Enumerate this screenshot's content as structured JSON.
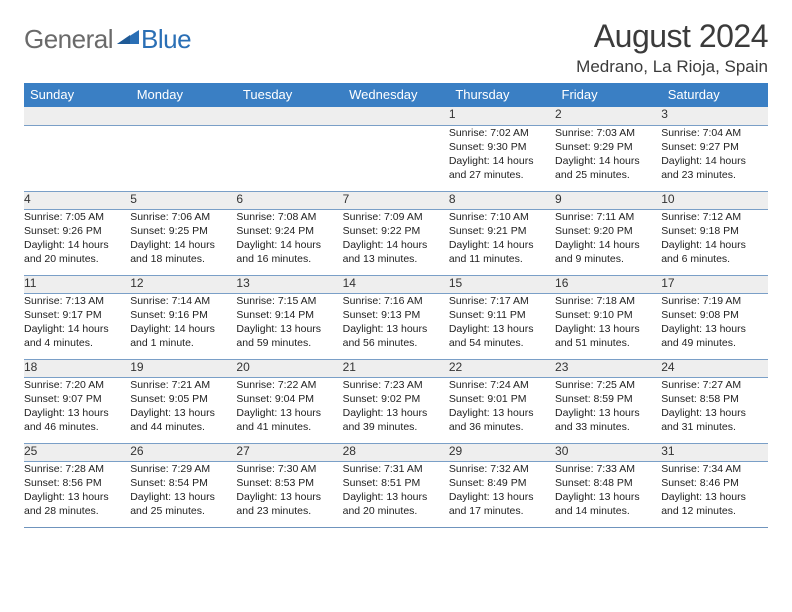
{
  "logo": {
    "part1": "General",
    "part2": "Blue"
  },
  "title": "August 2024",
  "location": "Medrano, La Rioja, Spain",
  "colors": {
    "header_bg": "#3a7fc4",
    "header_text": "#ffffff",
    "daynum_bg": "#eeeeee",
    "border": "#6f94bd",
    "logo_gray": "#6a6a6a",
    "logo_blue": "#2a6fb5"
  },
  "typography": {
    "title_fontsize": 32,
    "location_fontsize": 17,
    "header_fontsize": 13,
    "daynum_fontsize": 12,
    "cell_fontsize": 10.5
  },
  "weekdays": [
    "Sunday",
    "Monday",
    "Tuesday",
    "Wednesday",
    "Thursday",
    "Friday",
    "Saturday"
  ],
  "weeks": [
    [
      {
        "n": "",
        "lines": []
      },
      {
        "n": "",
        "lines": []
      },
      {
        "n": "",
        "lines": []
      },
      {
        "n": "",
        "lines": []
      },
      {
        "n": "1",
        "lines": [
          "Sunrise: 7:02 AM",
          "Sunset: 9:30 PM",
          "Daylight: 14 hours",
          "and 27 minutes."
        ]
      },
      {
        "n": "2",
        "lines": [
          "Sunrise: 7:03 AM",
          "Sunset: 9:29 PM",
          "Daylight: 14 hours",
          "and 25 minutes."
        ]
      },
      {
        "n": "3",
        "lines": [
          "Sunrise: 7:04 AM",
          "Sunset: 9:27 PM",
          "Daylight: 14 hours",
          "and 23 minutes."
        ]
      }
    ],
    [
      {
        "n": "4",
        "lines": [
          "Sunrise: 7:05 AM",
          "Sunset: 9:26 PM",
          "Daylight: 14 hours",
          "and 20 minutes."
        ]
      },
      {
        "n": "5",
        "lines": [
          "Sunrise: 7:06 AM",
          "Sunset: 9:25 PM",
          "Daylight: 14 hours",
          "and 18 minutes."
        ]
      },
      {
        "n": "6",
        "lines": [
          "Sunrise: 7:08 AM",
          "Sunset: 9:24 PM",
          "Daylight: 14 hours",
          "and 16 minutes."
        ]
      },
      {
        "n": "7",
        "lines": [
          "Sunrise: 7:09 AM",
          "Sunset: 9:22 PM",
          "Daylight: 14 hours",
          "and 13 minutes."
        ]
      },
      {
        "n": "8",
        "lines": [
          "Sunrise: 7:10 AM",
          "Sunset: 9:21 PM",
          "Daylight: 14 hours",
          "and 11 minutes."
        ]
      },
      {
        "n": "9",
        "lines": [
          "Sunrise: 7:11 AM",
          "Sunset: 9:20 PM",
          "Daylight: 14 hours",
          "and 9 minutes."
        ]
      },
      {
        "n": "10",
        "lines": [
          "Sunrise: 7:12 AM",
          "Sunset: 9:18 PM",
          "Daylight: 14 hours",
          "and 6 minutes."
        ]
      }
    ],
    [
      {
        "n": "11",
        "lines": [
          "Sunrise: 7:13 AM",
          "Sunset: 9:17 PM",
          "Daylight: 14 hours",
          "and 4 minutes."
        ]
      },
      {
        "n": "12",
        "lines": [
          "Sunrise: 7:14 AM",
          "Sunset: 9:16 PM",
          "Daylight: 14 hours",
          "and 1 minute."
        ]
      },
      {
        "n": "13",
        "lines": [
          "Sunrise: 7:15 AM",
          "Sunset: 9:14 PM",
          "Daylight: 13 hours",
          "and 59 minutes."
        ]
      },
      {
        "n": "14",
        "lines": [
          "Sunrise: 7:16 AM",
          "Sunset: 9:13 PM",
          "Daylight: 13 hours",
          "and 56 minutes."
        ]
      },
      {
        "n": "15",
        "lines": [
          "Sunrise: 7:17 AM",
          "Sunset: 9:11 PM",
          "Daylight: 13 hours",
          "and 54 minutes."
        ]
      },
      {
        "n": "16",
        "lines": [
          "Sunrise: 7:18 AM",
          "Sunset: 9:10 PM",
          "Daylight: 13 hours",
          "and 51 minutes."
        ]
      },
      {
        "n": "17",
        "lines": [
          "Sunrise: 7:19 AM",
          "Sunset: 9:08 PM",
          "Daylight: 13 hours",
          "and 49 minutes."
        ]
      }
    ],
    [
      {
        "n": "18",
        "lines": [
          "Sunrise: 7:20 AM",
          "Sunset: 9:07 PM",
          "Daylight: 13 hours",
          "and 46 minutes."
        ]
      },
      {
        "n": "19",
        "lines": [
          "Sunrise: 7:21 AM",
          "Sunset: 9:05 PM",
          "Daylight: 13 hours",
          "and 44 minutes."
        ]
      },
      {
        "n": "20",
        "lines": [
          "Sunrise: 7:22 AM",
          "Sunset: 9:04 PM",
          "Daylight: 13 hours",
          "and 41 minutes."
        ]
      },
      {
        "n": "21",
        "lines": [
          "Sunrise: 7:23 AM",
          "Sunset: 9:02 PM",
          "Daylight: 13 hours",
          "and 39 minutes."
        ]
      },
      {
        "n": "22",
        "lines": [
          "Sunrise: 7:24 AM",
          "Sunset: 9:01 PM",
          "Daylight: 13 hours",
          "and 36 minutes."
        ]
      },
      {
        "n": "23",
        "lines": [
          "Sunrise: 7:25 AM",
          "Sunset: 8:59 PM",
          "Daylight: 13 hours",
          "and 33 minutes."
        ]
      },
      {
        "n": "24",
        "lines": [
          "Sunrise: 7:27 AM",
          "Sunset: 8:58 PM",
          "Daylight: 13 hours",
          "and 31 minutes."
        ]
      }
    ],
    [
      {
        "n": "25",
        "lines": [
          "Sunrise: 7:28 AM",
          "Sunset: 8:56 PM",
          "Daylight: 13 hours",
          "and 28 minutes."
        ]
      },
      {
        "n": "26",
        "lines": [
          "Sunrise: 7:29 AM",
          "Sunset: 8:54 PM",
          "Daylight: 13 hours",
          "and 25 minutes."
        ]
      },
      {
        "n": "27",
        "lines": [
          "Sunrise: 7:30 AM",
          "Sunset: 8:53 PM",
          "Daylight: 13 hours",
          "and 23 minutes."
        ]
      },
      {
        "n": "28",
        "lines": [
          "Sunrise: 7:31 AM",
          "Sunset: 8:51 PM",
          "Daylight: 13 hours",
          "and 20 minutes."
        ]
      },
      {
        "n": "29",
        "lines": [
          "Sunrise: 7:32 AM",
          "Sunset: 8:49 PM",
          "Daylight: 13 hours",
          "and 17 minutes."
        ]
      },
      {
        "n": "30",
        "lines": [
          "Sunrise: 7:33 AM",
          "Sunset: 8:48 PM",
          "Daylight: 13 hours",
          "and 14 minutes."
        ]
      },
      {
        "n": "31",
        "lines": [
          "Sunrise: 7:34 AM",
          "Sunset: 8:46 PM",
          "Daylight: 13 hours",
          "and 12 minutes."
        ]
      }
    ]
  ]
}
